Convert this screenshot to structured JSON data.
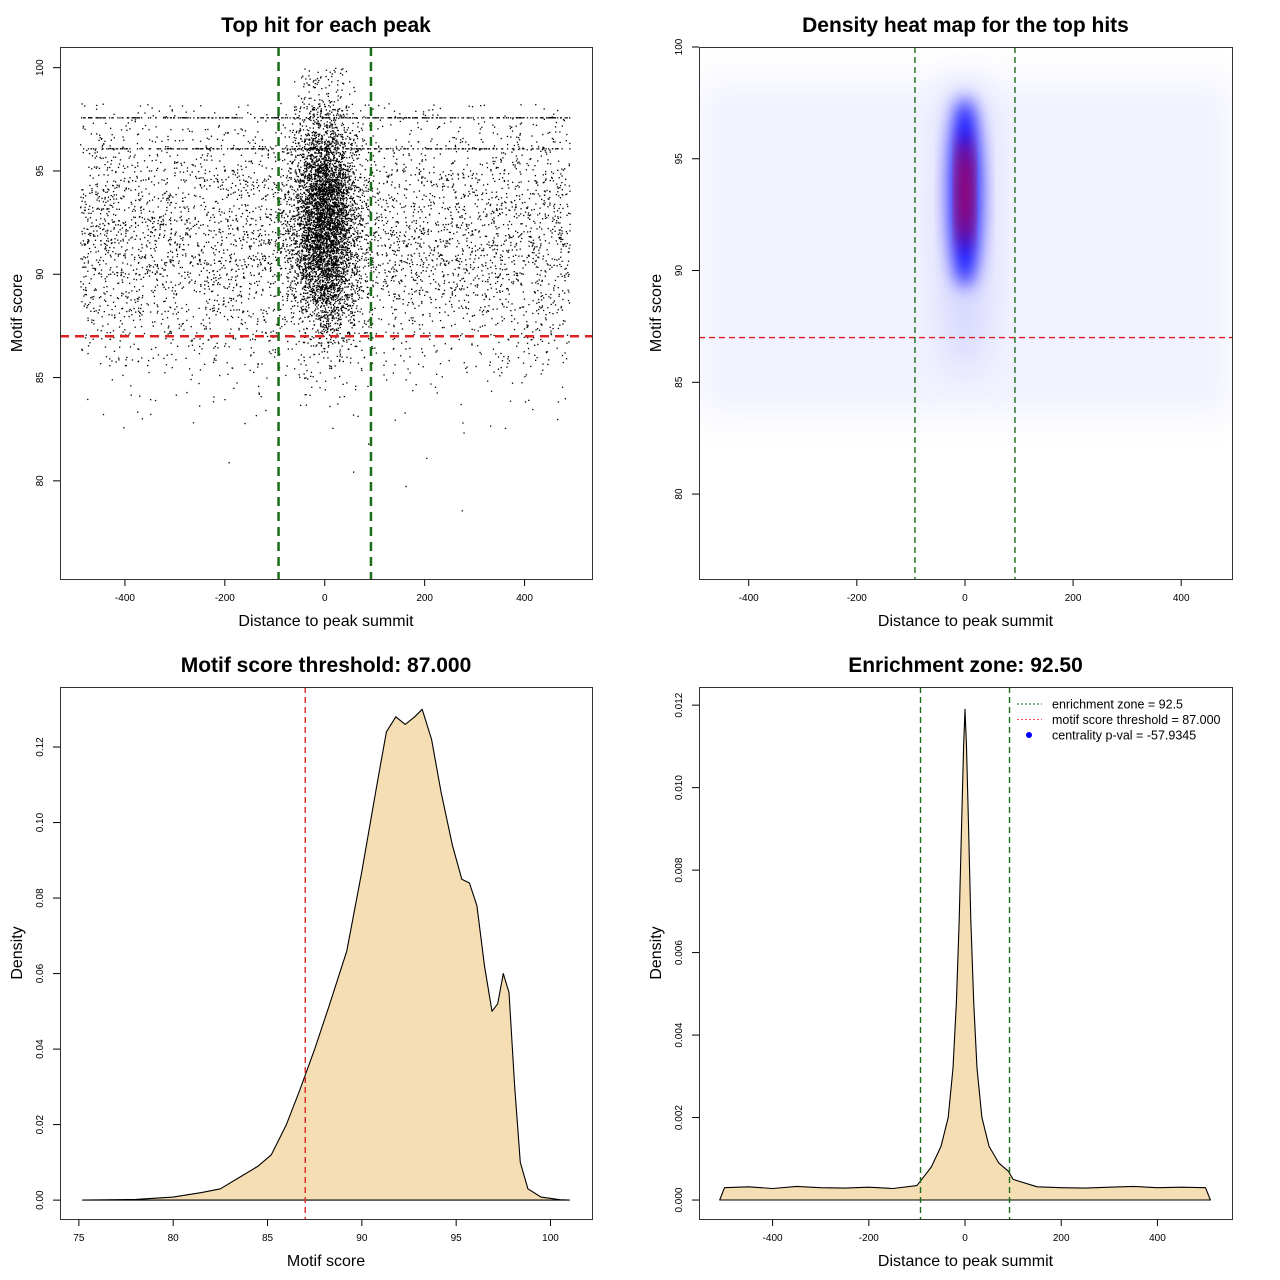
{
  "chart_data": [
    {
      "type": "scatter",
      "title": "Top hit for each peak",
      "xlabel": "Distance to peak summit",
      "ylabel": "Motif score",
      "xlim": [
        -530,
        535
      ],
      "ylim": [
        75.25,
        101
      ],
      "xticks": [
        "-400",
        "-200",
        "0",
        "200",
        "400"
      ],
      "xtick_values": [
        -400,
        -200,
        0,
        200,
        400
      ],
      "yticks": [
        "80",
        "85",
        "90",
        "95",
        "100"
      ],
      "ytick_values": [
        80,
        85,
        90,
        95,
        100
      ],
      "point_model": {
        "n_background": 5200,
        "n_central": 4800,
        "x_range": [
          -490,
          490
        ],
        "central_x_sd": 32,
        "score_mean": 92,
        "score_sd": 3.2,
        "score_max": 100,
        "dense_bands": [
          97.6,
          96.1
        ]
      },
      "hlines": [
        {
          "y": 87,
          "color": "#dd2222"
        }
      ],
      "vlines": [
        {
          "x": -92.5,
          "color": "#1a6e1a"
        },
        {
          "x": 92.5,
          "color": "#1a6e1a"
        }
      ]
    },
    {
      "type": "heatmap",
      "title": "Density heat map for the top hits",
      "xlabel": "Distance to peak summit",
      "ylabel": "Motif score",
      "xlim": [
        -492,
        494
      ],
      "ylim": [
        76.2,
        100
      ],
      "xticks": [
        "-400",
        "-200",
        "0",
        "200",
        "400"
      ],
      "xtick_values": [
        -400,
        -200,
        0,
        200,
        400
      ],
      "yticks": [
        "80",
        "85",
        "90",
        "95",
        "100"
      ],
      "ytick_values": [
        80,
        85,
        90,
        95,
        100
      ],
      "hotspot": {
        "x": 0,
        "y": 93.5,
        "x_sd": 12,
        "y_sd": 2.5
      },
      "colors": [
        "#ffffff",
        "#0000ff",
        "#ff0000"
      ],
      "hlines": [
        {
          "y": 87,
          "color": "#dd2222"
        }
      ],
      "vlines": [
        {
          "x": -92.5,
          "color": "#1a6e1a"
        },
        {
          "x": 92.5,
          "color": "#1a6e1a"
        }
      ]
    },
    {
      "type": "area",
      "title": "Motif score threshold: 87.000",
      "xlabel": "Motif score",
      "ylabel": "Density",
      "xlim": [
        74,
        102.2
      ],
      "ylim": [
        -0.005,
        0.1359
      ],
      "xticks": [
        "75",
        "80",
        "85",
        "90",
        "95",
        "100"
      ],
      "xtick_values": [
        75,
        80,
        85,
        90,
        95,
        100
      ],
      "yticks": [
        "0.00",
        "0.02",
        "0.04",
        "0.06",
        "0.08",
        "0.10",
        "0.12"
      ],
      "ytick_values": [
        0,
        0.02,
        0.04,
        0.06,
        0.08,
        0.1,
        0.12
      ],
      "x": [
        75.2,
        78,
        80,
        81.5,
        82.5,
        83.5,
        84.5,
        85.2,
        86,
        86.7,
        87.5,
        88.3,
        89.2,
        90,
        90.8,
        91.3,
        91.8,
        92.3,
        92.8,
        93.2,
        93.7,
        94.2,
        94.8,
        95.3,
        95.7,
        96.1,
        96.5,
        96.9,
        97.2,
        97.5,
        97.8,
        98.1,
        98.4,
        98.8,
        99.5,
        100.5,
        101
      ],
      "y": [
        0,
        0.0002,
        0.0008,
        0.002,
        0.003,
        0.006,
        0.009,
        0.012,
        0.02,
        0.029,
        0.04,
        0.052,
        0.066,
        0.087,
        0.11,
        0.124,
        0.128,
        0.126,
        0.128,
        0.13,
        0.122,
        0.108,
        0.094,
        0.085,
        0.084,
        0.078,
        0.062,
        0.05,
        0.052,
        0.06,
        0.055,
        0.03,
        0.01,
        0.003,
        0.0008,
        0.0001,
        0
      ],
      "fill": "#f5deb3",
      "vlines": [
        {
          "x": 87,
          "color": "#dd2222"
        }
      ]
    },
    {
      "type": "area",
      "title": "Enrichment zone: 92.50",
      "xlabel": "Distance to peak summit",
      "ylabel": "Density",
      "xlim": [
        -553,
        555
      ],
      "ylim": [
        -0.00046,
        0.01244
      ],
      "xticks": [
        "-400",
        "-200",
        "0",
        "200",
        "400"
      ],
      "xtick_values": [
        -400,
        -200,
        0,
        200,
        400
      ],
      "yticks": [
        "0.000",
        "0.002",
        "0.004",
        "0.006",
        "0.008",
        "0.010",
        "0.012"
      ],
      "ytick_values": [
        0,
        0.002,
        0.004,
        0.006,
        0.008,
        0.01,
        0.012
      ],
      "x": [
        -510,
        -500,
        -450,
        -400,
        -350,
        -300,
        -250,
        -200,
        -150,
        -100,
        -90,
        -70,
        -50,
        -35,
        -25,
        -18,
        -12,
        -7,
        -3,
        0,
        3,
        7,
        12,
        18,
        25,
        35,
        50,
        70,
        90,
        100,
        150,
        200,
        250,
        300,
        350,
        400,
        450,
        500,
        510
      ],
      "y": [
        0,
        0.0003,
        0.00032,
        0.00028,
        0.00033,
        0.0003,
        0.00029,
        0.00031,
        0.00028,
        0.00035,
        0.0005,
        0.0008,
        0.0013,
        0.002,
        0.0032,
        0.0048,
        0.0068,
        0.0092,
        0.011,
        0.0119,
        0.011,
        0.0092,
        0.0068,
        0.0048,
        0.0032,
        0.002,
        0.0013,
        0.0009,
        0.0007,
        0.0005,
        0.00032,
        0.0003,
        0.00029,
        0.00031,
        0.00033,
        0.0003,
        0.00031,
        0.0003,
        0
      ],
      "fill": "#f5deb3",
      "vlines": [
        {
          "x": -92.5,
          "color": "#1a6e1a"
        },
        {
          "x": 92.5,
          "color": "#1a6e1a"
        }
      ],
      "legend": {
        "position": "top-right",
        "entries": [
          {
            "label": "enrichment zone = 92.5",
            "color": "#1a6e1a",
            "style": "dotted"
          },
          {
            "label": "motif score threshold = 87.000",
            "color": "#ff5555",
            "style": "dotted"
          },
          {
            "label": "centrality p-val = -57.9345",
            "color": "#0000ff",
            "style": "point"
          }
        ]
      }
    }
  ]
}
